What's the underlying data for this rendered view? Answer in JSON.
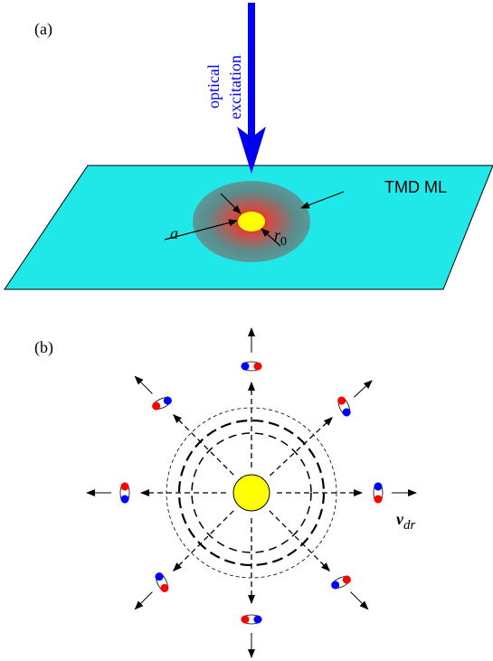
{
  "panel_a": {
    "label": "(a)",
    "arrow_label": [
      "optical",
      "excitation"
    ],
    "layer_label": "TMD ML",
    "radius_a": "a",
    "radius_r0": {
      "base": "r",
      "sub": "0"
    }
  },
  "panel_b": {
    "label": "(b)",
    "velocity": {
      "base": "v",
      "sub": "dr"
    }
  }
}
